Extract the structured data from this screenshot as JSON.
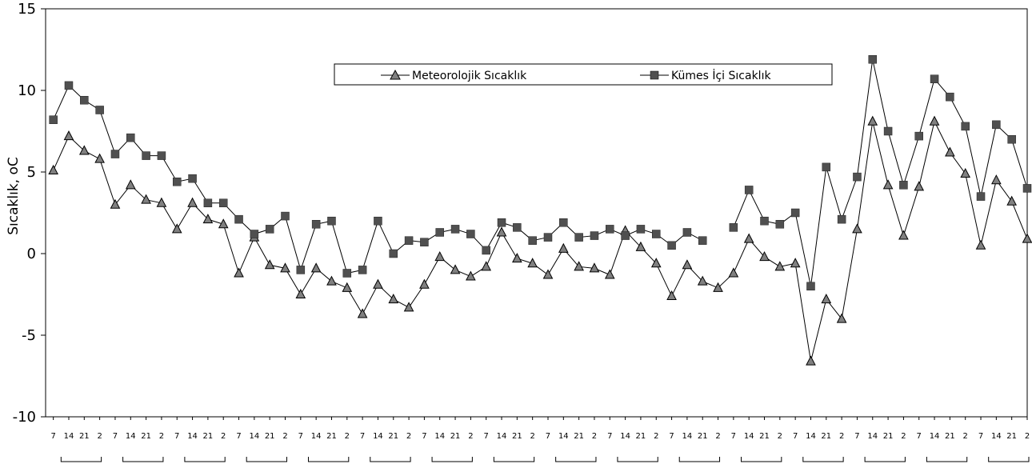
{
  "chart_data": {
    "type": "line",
    "ylabel": "Sıcaklık, oC",
    "ylim": [
      -10,
      15
    ],
    "y_ticks": [
      15,
      10,
      5,
      0,
      -5,
      -10
    ],
    "y_tick_labels": [
      "15",
      "10",
      "5",
      "0",
      "-5",
      "-10"
    ],
    "grid": false,
    "legend_position": "top-center",
    "x_tick_labels": [
      "7",
      "14",
      "21",
      "2",
      "7",
      "14",
      "21",
      "2",
      "7",
      "14",
      "21",
      "2",
      "7",
      "14",
      "21",
      "2",
      "7",
      "14",
      "21",
      "2",
      "7",
      "14",
      "21",
      "2",
      "7",
      "14",
      "21",
      "2",
      "7",
      "14",
      "21",
      "2",
      "7",
      "14",
      "21",
      "2",
      "7",
      "14",
      "21",
      "2",
      "7",
      "14",
      "21",
      "2",
      "7",
      "14",
      "21",
      "2",
      "7",
      "14",
      "21",
      "2",
      "7",
      "14",
      "21",
      "2",
      "7",
      "14",
      "21",
      "2",
      "7",
      "14",
      "21",
      "2"
    ],
    "series": [
      {
        "name": "Meteorolojik Sıcaklık",
        "marker": "triangle",
        "color": "#808080",
        "values": [
          5.1,
          7.2,
          6.3,
          5.8,
          3.0,
          4.2,
          3.3,
          3.1,
          1.5,
          3.1,
          2.1,
          1.8,
          -1.2,
          1.0,
          -0.7,
          -0.9,
          -2.5,
          -0.9,
          -1.7,
          -2.1,
          -3.7,
          -1.9,
          -2.8,
          -3.3,
          -1.9,
          -0.2,
          -1.0,
          -1.4,
          -0.8,
          1.3,
          -0.3,
          -0.6,
          -1.3,
          0.3,
          -0.8,
          -0.9,
          -1.3,
          1.4,
          0.4,
          -0.6,
          -2.6,
          -0.7,
          -1.7,
          -2.1,
          -1.2,
          0.9,
          -0.2,
          -0.8,
          -0.6,
          -6.6,
          -2.8,
          -4.0,
          1.5,
          8.1,
          4.2,
          1.1,
          4.1,
          8.1,
          6.2,
          4.9,
          0.5,
          4.5,
          3.2,
          0.9
        ]
      },
      {
        "name": "Kümes İçi Sıcaklık",
        "marker": "square",
        "color": "#505050",
        "values": [
          8.2,
          10.3,
          9.4,
          8.8,
          6.1,
          7.1,
          6.0,
          6.0,
          4.4,
          4.6,
          3.1,
          3.1,
          2.1,
          1.2,
          1.5,
          2.3,
          -1.0,
          1.8,
          2.0,
          -1.2,
          -1.0,
          2.0,
          0.0,
          0.8,
          0.7,
          1.3,
          1.5,
          1.2,
          0.2,
          1.9,
          1.6,
          0.8,
          1.0,
          1.9,
          1.0,
          1.1,
          1.5,
          1.1,
          1.5,
          1.2,
          0.5,
          1.3,
          0.8,
          null,
          1.6,
          3.9,
          2.0,
          1.8,
          2.5,
          -2.0,
          5.3,
          2.1,
          4.7,
          11.9,
          7.5,
          4.2,
          7.2,
          10.7,
          9.6,
          7.8,
          3.5,
          7.9,
          7.0,
          4.0
        ]
      }
    ]
  }
}
